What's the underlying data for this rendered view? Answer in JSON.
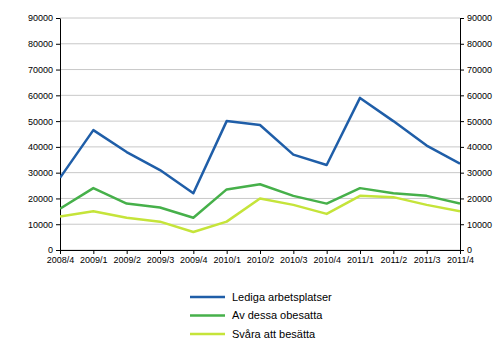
{
  "chart_data": {
    "type": "line",
    "categories": [
      "2008/4",
      "2009/1",
      "2009/2",
      "2009/3",
      "2009/4",
      "2010/1",
      "2010/2",
      "2010/3",
      "2010/4",
      "2011/1",
      "2011/2",
      "2011/3",
      "2011/4"
    ],
    "series": [
      {
        "name": "Lediga arbetsplatser",
        "color": "#1f5ea8",
        "values": [
          28000,
          46500,
          38000,
          31000,
          22000,
          50000,
          48500,
          37000,
          33000,
          59000,
          50000,
          40500,
          33500
        ]
      },
      {
        "name": "Av dessa obesatta",
        "color": "#46b04a",
        "values": [
          16000,
          24000,
          18000,
          16500,
          12500,
          23500,
          25500,
          21000,
          18000,
          24000,
          22000,
          21000,
          18000
        ]
      },
      {
        "name": "Svåra att besätta",
        "color": "#c5e43a",
        "values": [
          13000,
          15000,
          12500,
          11000,
          7000,
          11000,
          20000,
          17500,
          14000,
          21000,
          20500,
          17500,
          15000
        ]
      }
    ],
    "ylim": [
      0,
      90000
    ],
    "yticks": [
      0,
      10000,
      20000,
      30000,
      40000,
      50000,
      60000,
      70000,
      80000,
      90000
    ],
    "y2lim": [
      0,
      90000
    ],
    "y2ticks": [
      0,
      10000,
      20000,
      30000,
      40000,
      50000,
      60000,
      70000,
      80000,
      90000
    ],
    "grid": true,
    "legend": "bottom"
  }
}
